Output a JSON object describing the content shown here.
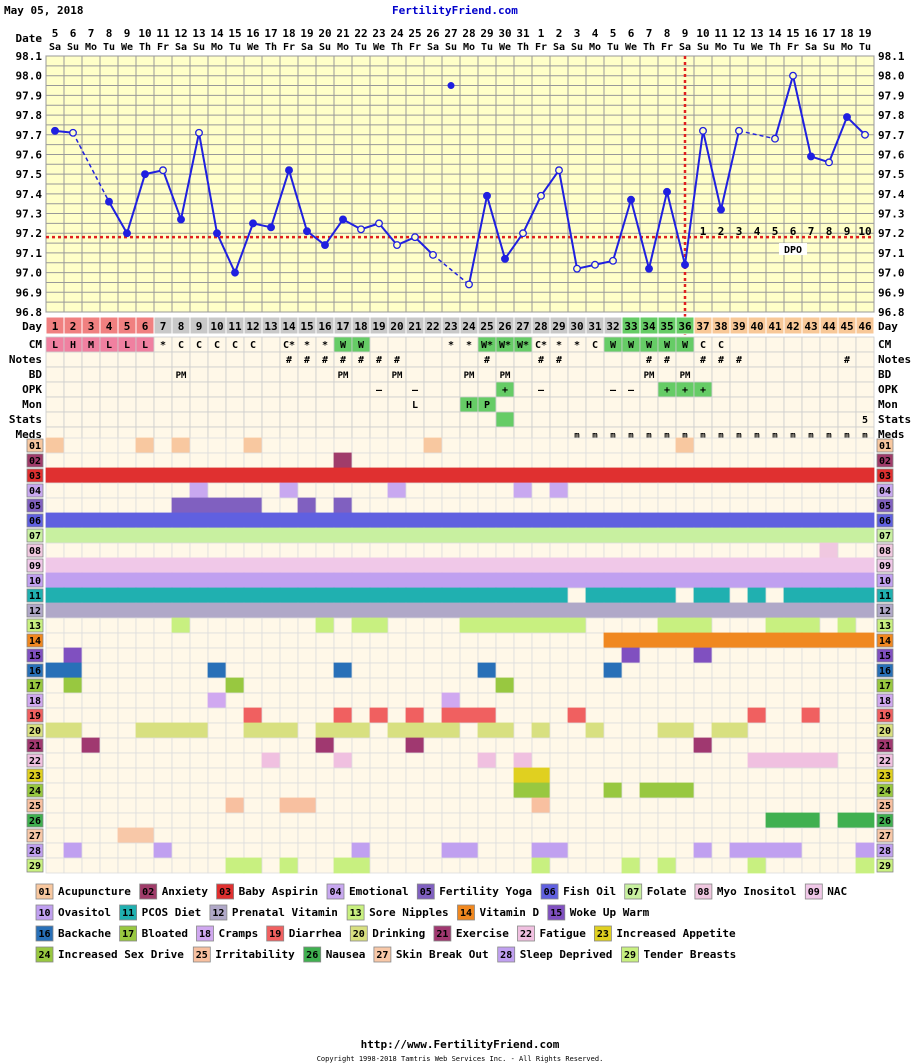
{
  "header": {
    "date": "May 05, 2018",
    "site": "FertilityFriend.com"
  },
  "footer": {
    "url": "http://www.FertilityFriend.com",
    "copyright": "Copyright 1998-2018 Tamtris Web Services Inc. - All Rights Reserved."
  },
  "row_labels": {
    "date": "Date",
    "temp_unit": "",
    "day": "Day",
    "cm": "CM",
    "notes": "Notes",
    "bd": "BD",
    "opk": "OPK",
    "mon": "Mon",
    "stats": "Stats",
    "meds": "Meds"
  },
  "chart_data": {
    "type": "line",
    "title": "",
    "ylim": [
      96.8,
      98.1
    ],
    "y_ticks": [
      "98.1",
      "98.0",
      "97.9",
      "97.8",
      "97.7",
      "97.6",
      "97.5",
      "97.4",
      "97.3",
      "97.2",
      "97.1",
      "97.0",
      "96.9",
      "96.8"
    ],
    "dates": [
      "5",
      "6",
      "7",
      "8",
      "9",
      "10",
      "11",
      "12",
      "13",
      "14",
      "15",
      "16",
      "17",
      "18",
      "19",
      "20",
      "21",
      "22",
      "23",
      "24",
      "25",
      "26",
      "27",
      "28",
      "29",
      "30",
      "31",
      "1",
      "2",
      "3",
      "4",
      "5",
      "6",
      "7",
      "8",
      "9",
      "10",
      "11",
      "12",
      "13",
      "14",
      "15",
      "16",
      "17",
      "18",
      "19"
    ],
    "weekdays": [
      "Sa",
      "Su",
      "Mo",
      "Tu",
      "We",
      "Th",
      "Fr",
      "Sa",
      "Su",
      "Mo",
      "Tu",
      "We",
      "Th",
      "Fr",
      "Sa",
      "Su",
      "Mo",
      "Tu",
      "We",
      "Th",
      "Fr",
      "Sa",
      "Su",
      "Mo",
      "Tu",
      "We",
      "Th",
      "Fr",
      "Sa",
      "Su",
      "Mo",
      "Tu",
      "We",
      "Th",
      "Fr",
      "Sa",
      "Su",
      "Mo",
      "Tu",
      "We",
      "Th",
      "Fr",
      "Sa",
      "Su",
      "Mo",
      "Tu"
    ],
    "cycle_days": [
      "1",
      "2",
      "3",
      "4",
      "5",
      "6",
      "7",
      "8",
      "9",
      "10",
      "11",
      "12",
      "13",
      "14",
      "15",
      "16",
      "17",
      "18",
      "19",
      "20",
      "21",
      "22",
      "23",
      "24",
      "25",
      "26",
      "27",
      "28",
      "29",
      "30",
      "31",
      "32",
      "33",
      "34",
      "35",
      "36",
      "37",
      "38",
      "39",
      "40",
      "41",
      "42",
      "43",
      "44",
      "45",
      "46"
    ],
    "temps": [
      97.72,
      97.71,
      null,
      97.36,
      97.2,
      97.5,
      97.52,
      97.27,
      97.71,
      97.2,
      97.0,
      97.25,
      97.23,
      97.52,
      97.21,
      97.14,
      97.27,
      97.22,
      97.25,
      97.14,
      97.18,
      97.09,
      null,
      96.94,
      97.39,
      97.07,
      97.2,
      97.39,
      97.52,
      97.02,
      97.04,
      97.06,
      97.37,
      97.02,
      97.41,
      97.04,
      97.72,
      97.32,
      97.72,
      null,
      97.68,
      98.0,
      97.59,
      97.56,
      97.79,
      97.7
    ],
    "temp_open": [
      false,
      true,
      false,
      false,
      false,
      false,
      true,
      false,
      true,
      false,
      false,
      false,
      false,
      false,
      false,
      false,
      false,
      true,
      true,
      true,
      true,
      true,
      false,
      true,
      false,
      false,
      true,
      true,
      true,
      true,
      true,
      true,
      false,
      false,
      false,
      false,
      true,
      false,
      true,
      false,
      true,
      true,
      false,
      true,
      false,
      true
    ],
    "dashed_after": [
      1,
      3,
      21,
      22,
      38,
      39
    ],
    "outlier": {
      "day_index": 22,
      "temp": 97.95
    },
    "coverline": 97.18,
    "ovulation_day_index": 35,
    "dpo_start_index": 36,
    "dpo_numbers": [
      "1",
      "2",
      "3",
      "4",
      "5",
      "6",
      "7",
      "8",
      "9",
      "10"
    ],
    "dpo_label": "DPO"
  },
  "day_colors": {
    "period": "#f08080",
    "fertile": "#66cc66",
    "luteal": "#f8c898",
    "normal": "#c8c8c8"
  },
  "cm": [
    "L",
    "H",
    "M",
    "L",
    "L",
    "L",
    "*",
    "C",
    "C",
    "C",
    "C",
    "C",
    "",
    "C*",
    "*",
    "*",
    "W",
    "W",
    "",
    "",
    "",
    "",
    "*",
    "*",
    "W*",
    "W*",
    "W*",
    "C*",
    "*",
    "*",
    "C",
    "W",
    "W",
    "W",
    "W",
    "W",
    "C",
    "C",
    "",
    "",
    "",
    "",
    "",
    "",
    "",
    ""
  ],
  "cm_colors": [
    "#f080a0",
    "#f080a0",
    "#f080a0",
    "#f080a0",
    "#f080a0",
    "#f080a0",
    "",
    "",
    "",
    "",
    "",
    "",
    "",
    "",
    "",
    "",
    "#66cc66",
    "#66cc66",
    "",
    "",
    "",
    "",
    "",
    "",
    "#66cc66",
    "#66cc66",
    "#66cc66",
    "",
    "",
    "",
    "",
    "#66cc66",
    "#66cc66",
    "#66cc66",
    "#66cc66",
    "#66cc66",
    "",
    "",
    "",
    "",
    "",
    "",
    "",
    "",
    "",
    ""
  ],
  "notes": [
    "",
    "",
    "",
    "",
    "",
    "",
    "",
    "",
    "",
    "",
    "",
    "",
    "",
    "#",
    "#",
    "#",
    "#",
    "#",
    "#",
    "#",
    "",
    "",
    "",
    "",
    "#",
    "",
    "",
    "#",
    "#",
    "",
    "",
    "",
    "",
    "#",
    "#",
    "",
    "#",
    "#",
    "#",
    "",
    "",
    "",
    "",
    "",
    "#",
    ""
  ],
  "bd": [
    "",
    "",
    "",
    "",
    "",
    "",
    "",
    "PM",
    "",
    "",
    "",
    "",
    "",
    "",
    "",
    "",
    "PM",
    "",
    "",
    "PM",
    "",
    "",
    "",
    "PM",
    "",
    "PM",
    "",
    "",
    "",
    "",
    "",
    "",
    "",
    "PM",
    "",
    "PM",
    "",
    "",
    "",
    "",
    "",
    "",
    "",
    "",
    "",
    ""
  ],
  "opk": [
    "",
    "",
    "",
    "",
    "",
    "",
    "",
    "",
    "",
    "",
    "",
    "",
    "",
    "",
    "",
    "",
    "",
    "",
    "–",
    "",
    "–",
    "",
    "",
    "",
    "",
    "+",
    "",
    "–",
    "",
    "",
    "",
    "–",
    "–",
    "",
    "+",
    "+",
    "+",
    "",
    "",
    "",
    "",
    "",
    "",
    "",
    "",
    ""
  ],
  "mon": [
    "",
    "",
    "",
    "",
    "",
    "",
    "",
    "",
    "",
    "",
    "",
    "",
    "",
    "",
    "",
    "",
    "",
    "",
    "",
    "",
    "L",
    "",
    "",
    "H",
    "P",
    "",
    "",
    "",
    "",
    "",
    "",
    "",
    "",
    "",
    "",
    "",
    "",
    "",
    "",
    "",
    "",
    "",
    "",
    "",
    "",
    ""
  ],
  "stats": [
    "",
    "",
    "",
    "",
    "",
    "",
    "",
    "",
    "",
    "",
    "",
    "",
    "",
    "",
    "",
    "",
    "",
    "",
    "",
    "",
    "",
    "",
    "",
    "",
    "",
    "",
    "",
    "",
    "",
    "",
    "",
    "",
    "",
    "",
    "",
    "",
    "",
    "",
    "",
    "",
    "",
    "",
    "",
    "",
    "",
    "5"
  ],
  "meds": [
    "",
    "",
    "",
    "",
    "",
    "",
    "",
    "",
    "",
    "",
    "",
    "",
    "",
    "",
    "",
    "",
    "",
    "",
    "",
    "",
    "",
    "",
    "",
    "",
    "",
    "",
    "",
    "",
    "",
    "m",
    "m",
    "m",
    "m",
    "m",
    "m",
    "m",
    "m",
    "m",
    "m",
    "m",
    "m",
    "m",
    "m",
    "m",
    "m",
    "m"
  ],
  "conditions": [
    {
      "num": "01",
      "color": "#f8c8a0"
    },
    {
      "num": "02",
      "color": "#a03c6a"
    },
    {
      "num": "03",
      "color": "#e03030"
    },
    {
      "num": "04",
      "color": "#c8a8f0"
    },
    {
      "num": "05",
      "color": "#8060c0"
    },
    {
      "num": "06",
      "color": "#6060e0"
    },
    {
      "num": "07",
      "color": "#c8f0a0"
    },
    {
      "num": "08",
      "color": "#f0c8e0"
    },
    {
      "num": "09",
      "color": "#f0c8e8"
    },
    {
      "num": "10",
      "color": "#c0a0f0"
    },
    {
      "num": "11",
      "color": "#20b0b0"
    },
    {
      "num": "12",
      "color": "#b0a8c8"
    },
    {
      "num": "13",
      "color": "#c8f080"
    },
    {
      "num": "14",
      "color": "#f08820"
    },
    {
      "num": "15",
      "color": "#8050c0"
    },
    {
      "num": "16",
      "color": "#2870b8"
    },
    {
      "num": "17",
      "color": "#98c840"
    },
    {
      "num": "18",
      "color": "#d0a8f0"
    },
    {
      "num": "19",
      "color": "#f06060"
    },
    {
      "num": "20",
      "color": "#d8e080"
    },
    {
      "num": "21",
      "color": "#a03870"
    },
    {
      "num": "22",
      "color": "#f0c0e0"
    },
    {
      "num": "23",
      "color": "#e0d020"
    },
    {
      "num": "24",
      "color": "#98c840"
    },
    {
      "num": "25",
      "color": "#f8c0a0"
    },
    {
      "num": "26",
      "color": "#40b050"
    },
    {
      "num": "27",
      "color": "#f8c8a8"
    },
    {
      "num": "28",
      "color": "#c0a0f0"
    },
    {
      "num": "29",
      "color": "#c8f080"
    }
  ],
  "condition_marks": {
    "01": [
      0,
      5,
      7,
      11,
      21,
      35
    ],
    "02": [
      16
    ],
    "03": "all",
    "04": [
      8,
      13,
      19,
      26,
      28
    ],
    "05": [
      7,
      8,
      9,
      10,
      11,
      14,
      16
    ],
    "06": "all",
    "07": "all",
    "08": [
      43
    ],
    "09": "all",
    "10": "all",
    "11": "all_except:29,35,38,40",
    "12": "all",
    "13": [
      7,
      15,
      17,
      18,
      23,
      24,
      25,
      26,
      27,
      28,
      29,
      34,
      35,
      36,
      40,
      41,
      42,
      44
    ],
    "14": [
      31,
      32,
      33,
      34,
      35,
      36,
      37,
      38,
      39,
      40,
      41,
      42,
      43,
      44,
      45
    ],
    "15": [
      1,
      32,
      36
    ],
    "16": [
      0,
      1,
      9,
      16,
      24,
      31
    ],
    "17": [
      1,
      10,
      25
    ],
    "18": [
      9,
      22
    ],
    "19": [
      11,
      16,
      18,
      20,
      22,
      23,
      24,
      29,
      39,
      42
    ],
    "20": [
      0,
      1,
      5,
      6,
      7,
      8,
      11,
      12,
      13,
      15,
      16,
      17,
      19,
      20,
      21,
      22,
      24,
      25,
      27,
      30,
      34,
      35,
      37,
      38
    ],
    "21": [
      2,
      15,
      20,
      36
    ],
    "22": [
      12,
      16,
      24,
      26,
      39,
      40,
      41,
      42,
      43
    ],
    "23": [
      26,
      27
    ],
    "24": [
      26,
      27,
      31,
      33,
      34,
      35
    ],
    "25": [
      10,
      13,
      14,
      27
    ],
    "26": [
      40,
      41,
      42,
      44,
      45
    ],
    "27": [
      4,
      5
    ],
    "28": [
      1,
      6,
      17,
      22,
      23,
      27,
      28,
      36,
      38,
      39,
      40,
      41,
      45
    ],
    "29": [
      10,
      11,
      13,
      16,
      17,
      27,
      32,
      34,
      39,
      45
    ]
  },
  "legend": [
    [
      {
        "num": "01",
        "label": "Acupuncture"
      },
      {
        "num": "02",
        "label": "Anxiety"
      },
      {
        "num": "03",
        "label": "Baby Aspirin"
      },
      {
        "num": "04",
        "label": "Emotional"
      },
      {
        "num": "05",
        "label": "Fertility Yoga"
      },
      {
        "num": "06",
        "label": "Fish Oil"
      },
      {
        "num": "07",
        "label": "Folate"
      },
      {
        "num": "08",
        "label": "Myo Inositol"
      },
      {
        "num": "09",
        "label": "NAC"
      }
    ],
    [
      {
        "num": "10",
        "label": "Ovasitol"
      },
      {
        "num": "11",
        "label": "PCOS Diet"
      },
      {
        "num": "12",
        "label": "Prenatal Vitamin"
      },
      {
        "num": "13",
        "label": "Sore Nipples"
      },
      {
        "num": "14",
        "label": "Vitamin D"
      },
      {
        "num": "15",
        "label": "Woke Up Warm"
      }
    ],
    [
      {
        "num": "16",
        "label": "Backache"
      },
      {
        "num": "17",
        "label": "Bloated"
      },
      {
        "num": "18",
        "label": "Cramps"
      },
      {
        "num": "19",
        "label": "Diarrhea"
      },
      {
        "num": "20",
        "label": "Drinking"
      },
      {
        "num": "21",
        "label": "Exercise"
      },
      {
        "num": "22",
        "label": "Fatigue"
      },
      {
        "num": "23",
        "label": "Increased Appetite"
      }
    ],
    [
      {
        "num": "24",
        "label": "Increased Sex Drive"
      },
      {
        "num": "25",
        "label": "Irritability"
      },
      {
        "num": "26",
        "label": "Nausea"
      },
      {
        "num": "27",
        "label": "Skin Break Out"
      },
      {
        "num": "28",
        "label": "Sleep Deprived"
      },
      {
        "num": "29",
        "label": "Tender Breasts"
      }
    ]
  ]
}
